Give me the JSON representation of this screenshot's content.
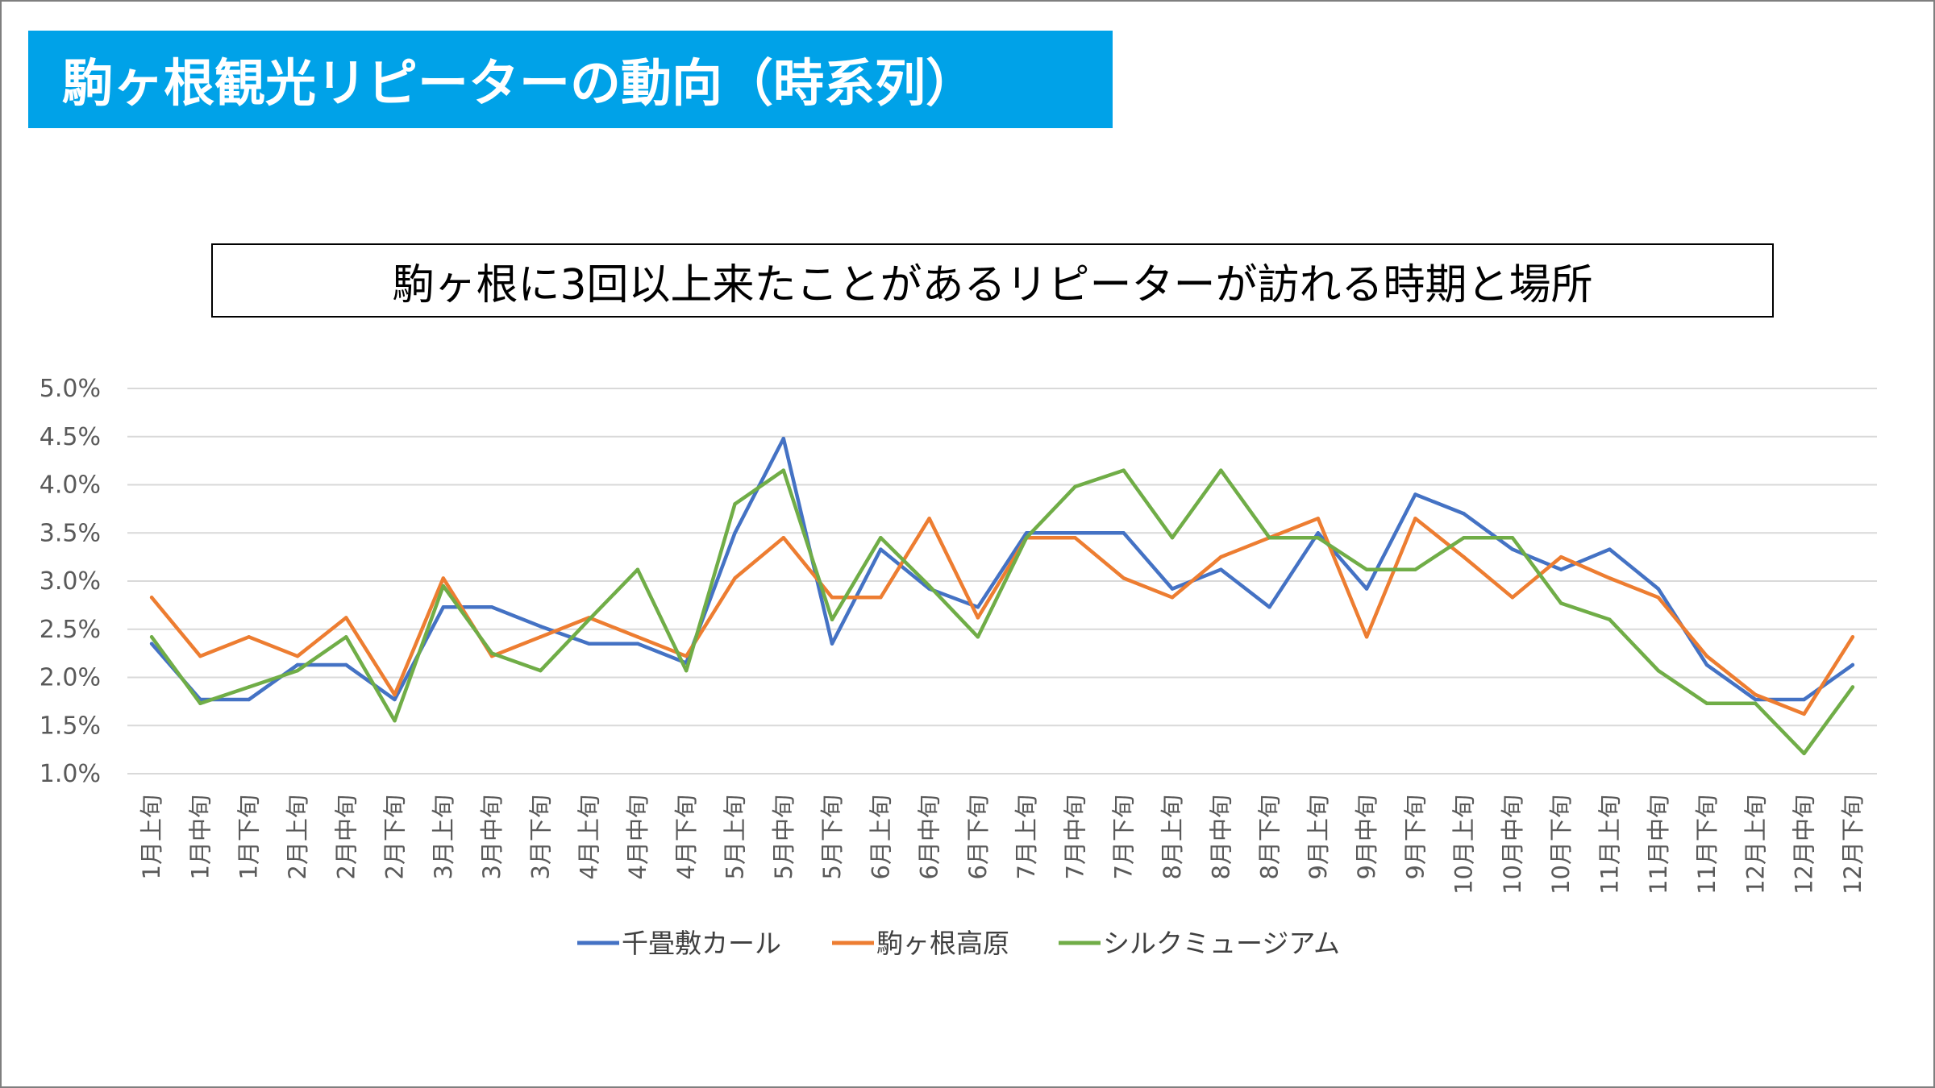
{
  "slide_title": "駒ヶ根観光リピーターの動向（時系列）",
  "chart_data": {
    "type": "line",
    "title": "駒ヶ根に3回以上来たことがあるリピーターが訪れる時期と場所",
    "xlabel": "",
    "ylabel": "",
    "ylim": [
      0.01,
      0.05
    ],
    "y_ticks": [
      "1.0%",
      "1.5%",
      "2.0%",
      "2.5%",
      "3.0%",
      "3.5%",
      "4.0%",
      "4.5%",
      "5.0%"
    ],
    "grid": true,
    "legend_position": "bottom",
    "categories": [
      "1月上旬",
      "1月中旬",
      "1月下旬",
      "2月上旬",
      "2月中旬",
      "2月下旬",
      "3月上旬",
      "3月中旬",
      "3月下旬",
      "4月上旬",
      "4月中旬",
      "4月下旬",
      "5月上旬",
      "5月中旬",
      "5月下旬",
      "6月上旬",
      "6月中旬",
      "6月下旬",
      "7月上旬",
      "7月中旬",
      "7月下旬",
      "8月上旬",
      "8月中旬",
      "8月下旬",
      "9月上旬",
      "9月中旬",
      "9月下旬",
      "10月上旬",
      "10月中旬",
      "10月下旬",
      "11月上旬",
      "11月中旬",
      "11月下旬",
      "12月上旬",
      "12月中旬",
      "12月下旬"
    ],
    "series": [
      {
        "name": "千畳敷カール",
        "color": "#4472c4",
        "values": [
          0.0235,
          0.0177,
          0.0177,
          0.0213,
          0.0213,
          0.0177,
          0.0273,
          0.0273,
          0.0253,
          0.0235,
          0.0235,
          0.0215,
          0.035,
          0.0448,
          0.0235,
          0.0333,
          0.0292,
          0.0273,
          0.035,
          0.035,
          0.035,
          0.0292,
          0.0312,
          0.0273,
          0.035,
          0.0292,
          0.039,
          0.037,
          0.0333,
          0.0312,
          0.0333,
          0.0292,
          0.0213,
          0.0177,
          0.0177,
          0.0213
        ]
      },
      {
        "name": "駒ヶ根高原",
        "color": "#ed7d31",
        "values": [
          0.0283,
          0.0222,
          0.0242,
          0.0222,
          0.0262,
          0.0182,
          0.0303,
          0.0222,
          0.0242,
          0.0262,
          0.0242,
          0.0222,
          0.0303,
          0.0345,
          0.0283,
          0.0283,
          0.0365,
          0.0262,
          0.0345,
          0.0345,
          0.0303,
          0.0283,
          0.0325,
          0.0345,
          0.0365,
          0.0242,
          0.0365,
          0.0325,
          0.0283,
          0.0325,
          0.0303,
          0.0283,
          0.0222,
          0.0182,
          0.0162,
          0.0242
        ]
      },
      {
        "name": "シルクミュージアム",
        "color": "#70ad47",
        "values": [
          0.0242,
          0.0173,
          0.019,
          0.0207,
          0.0242,
          0.0155,
          0.0295,
          0.0225,
          0.0207,
          0.026,
          0.0312,
          0.0207,
          0.038,
          0.0415,
          0.026,
          0.0345,
          0.0295,
          0.0242,
          0.0345,
          0.0398,
          0.0415,
          0.0345,
          0.0415,
          0.0345,
          0.0345,
          0.0312,
          0.0312,
          0.0345,
          0.0345,
          0.0277,
          0.026,
          0.0207,
          0.0173,
          0.0173,
          0.0121,
          0.019
        ]
      }
    ]
  }
}
